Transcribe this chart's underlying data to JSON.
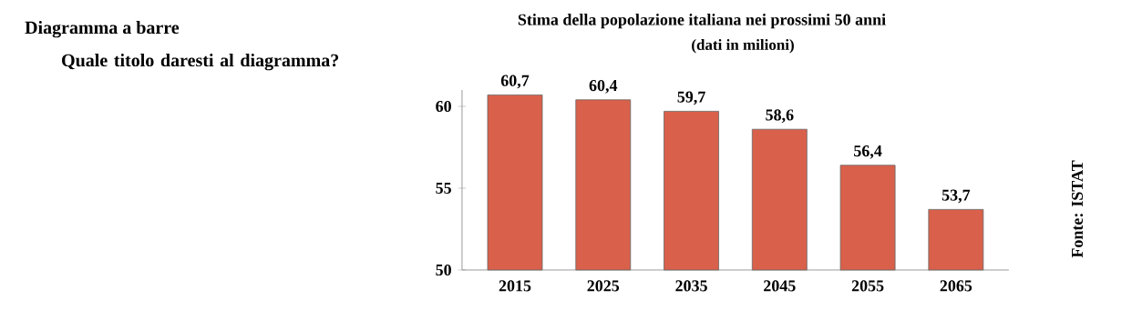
{
  "chart_data": {
    "type": "bar",
    "title": "Stima della popolazione italiana nei prossimi 50 anni",
    "subtitle": "(dati in milioni)",
    "categories": [
      "2015",
      "2025",
      "2035",
      "2045",
      "2055",
      "2065"
    ],
    "values": [
      60.7,
      60.4,
      59.7,
      58.6,
      56.4,
      53.7
    ],
    "value_labels": [
      "60,7",
      "60,4",
      "59,7",
      "58,6",
      "56,4",
      "53,7"
    ],
    "color": "#d9604a",
    "ylim": [
      50,
      61
    ],
    "yticks": [
      50,
      55,
      60
    ],
    "grid": false,
    "annotations": [
      "Diagramma a barre",
      "Quale titolo daresti al diagramma?",
      "Fonte: ISTAT"
    ]
  }
}
